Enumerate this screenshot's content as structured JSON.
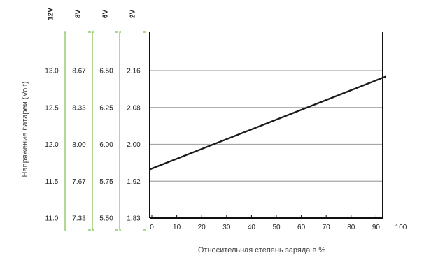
{
  "chart_data": {
    "type": "line",
    "xlabel": "Относительная степень заряда в %",
    "ylabel": "Напряжение батареи (Volt)",
    "x_ticks": [
      "0",
      "10",
      "20",
      "30",
      "40",
      "50",
      "60",
      "70",
      "80",
      "90",
      "100"
    ],
    "xlim": [
      0,
      100
    ],
    "voltage_scales": [
      {
        "header": "12V",
        "ticks": [
          "13.0",
          "12.5",
          "12.0",
          "11.5",
          "11.0"
        ]
      },
      {
        "header": "8V",
        "ticks": [
          "8.67",
          "8.33",
          "8.00",
          "7.67",
          "7.33"
        ]
      },
      {
        "header": "6V",
        "ticks": [
          "6.50",
          "6.25",
          "6.00",
          "5.75",
          "5.50"
        ]
      },
      {
        "header": "2V",
        "ticks": [
          "2.16",
          "2.08",
          "2.00",
          "1.92",
          "1.83"
        ]
      }
    ],
    "ylim_12v": [
      11.0,
      13.0
    ],
    "series": [
      {
        "x": [
          0,
          94
        ],
        "y_12v": [
          11.66,
          12.92
        ]
      }
    ],
    "grid": true,
    "colors": {
      "line": "#1a1a1a",
      "grid": "#a6a6a6",
      "bracket": "#7cc24a",
      "axis": "#111111"
    }
  }
}
